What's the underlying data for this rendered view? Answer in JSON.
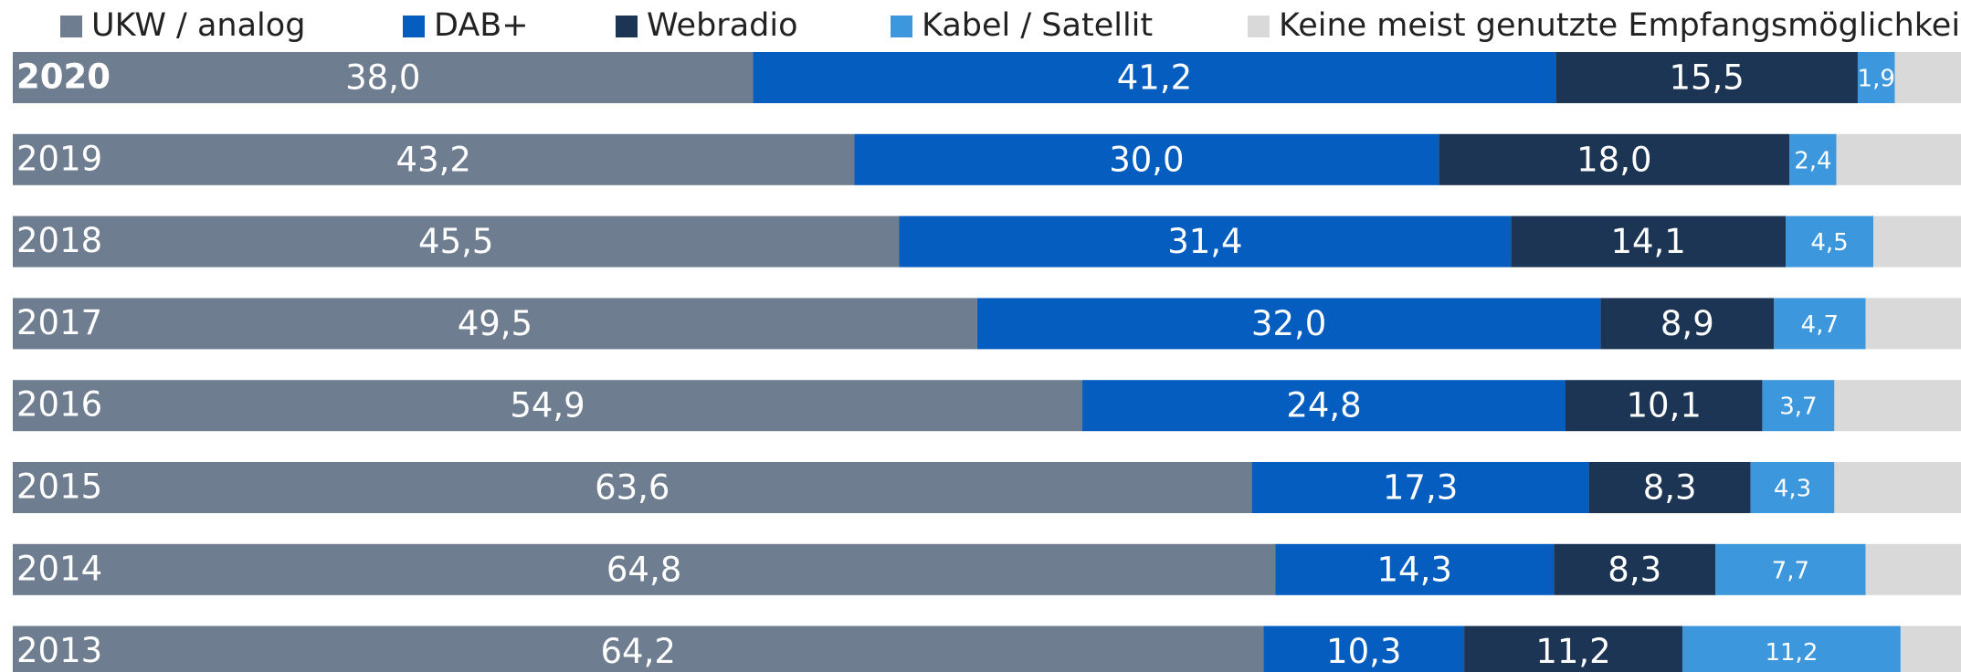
{
  "chart_data": {
    "type": "stacked_barh",
    "categories": [
      "2020",
      "2019",
      "2018",
      "2017",
      "2016",
      "2015",
      "2014",
      "2013"
    ],
    "xlim": [
      0,
      100
    ],
    "series": [
      {
        "name": "UKW / analog",
        "color": "#6e7d8f",
        "values": [
          38.0,
          43.2,
          45.5,
          49.5,
          54.9,
          63.6,
          64.8,
          64.2
        ],
        "value_labels": [
          "38,0",
          "43,2",
          "45,5",
          "49,5",
          "54,9",
          "63,6",
          "64,8",
          "64,2"
        ]
      },
      {
        "name": "DAB+",
        "color": "#055dbf",
        "values": [
          41.2,
          30.0,
          31.4,
          32.0,
          24.8,
          17.3,
          14.3,
          10.3
        ],
        "value_labels": [
          "41,2",
          "30,0",
          "31,4",
          "32,0",
          "24,8",
          "17,3",
          "14,3",
          "10,3"
        ]
      },
      {
        "name": "Webradio",
        "color": "#1c3554",
        "values": [
          15.5,
          18.0,
          14.1,
          8.9,
          10.1,
          8.3,
          8.3,
          11.2
        ],
        "value_labels": [
          "15,5",
          "18,0",
          "14,1",
          "8,9",
          "10,1",
          "8,3",
          "8,3",
          "11,2"
        ]
      },
      {
        "name": "Kabel / Satellit",
        "color": "#3d97dd",
        "values": [
          1.9,
          2.4,
          4.5,
          4.7,
          3.7,
          4.3,
          7.7,
          11.2
        ],
        "value_labels": [
          "1,9",
          "2,4",
          "4,5",
          "4,7",
          "3,7",
          "4,3",
          "7,7",
          "11,2"
        ]
      },
      {
        "name": "Keine meist genutzte Empfangsmöglichkeit",
        "color": "#d9d9d9",
        "values": [
          3.4,
          6.4,
          4.5,
          4.9,
          6.5,
          6.5,
          4.9,
          3.1
        ]
      }
    ]
  }
}
